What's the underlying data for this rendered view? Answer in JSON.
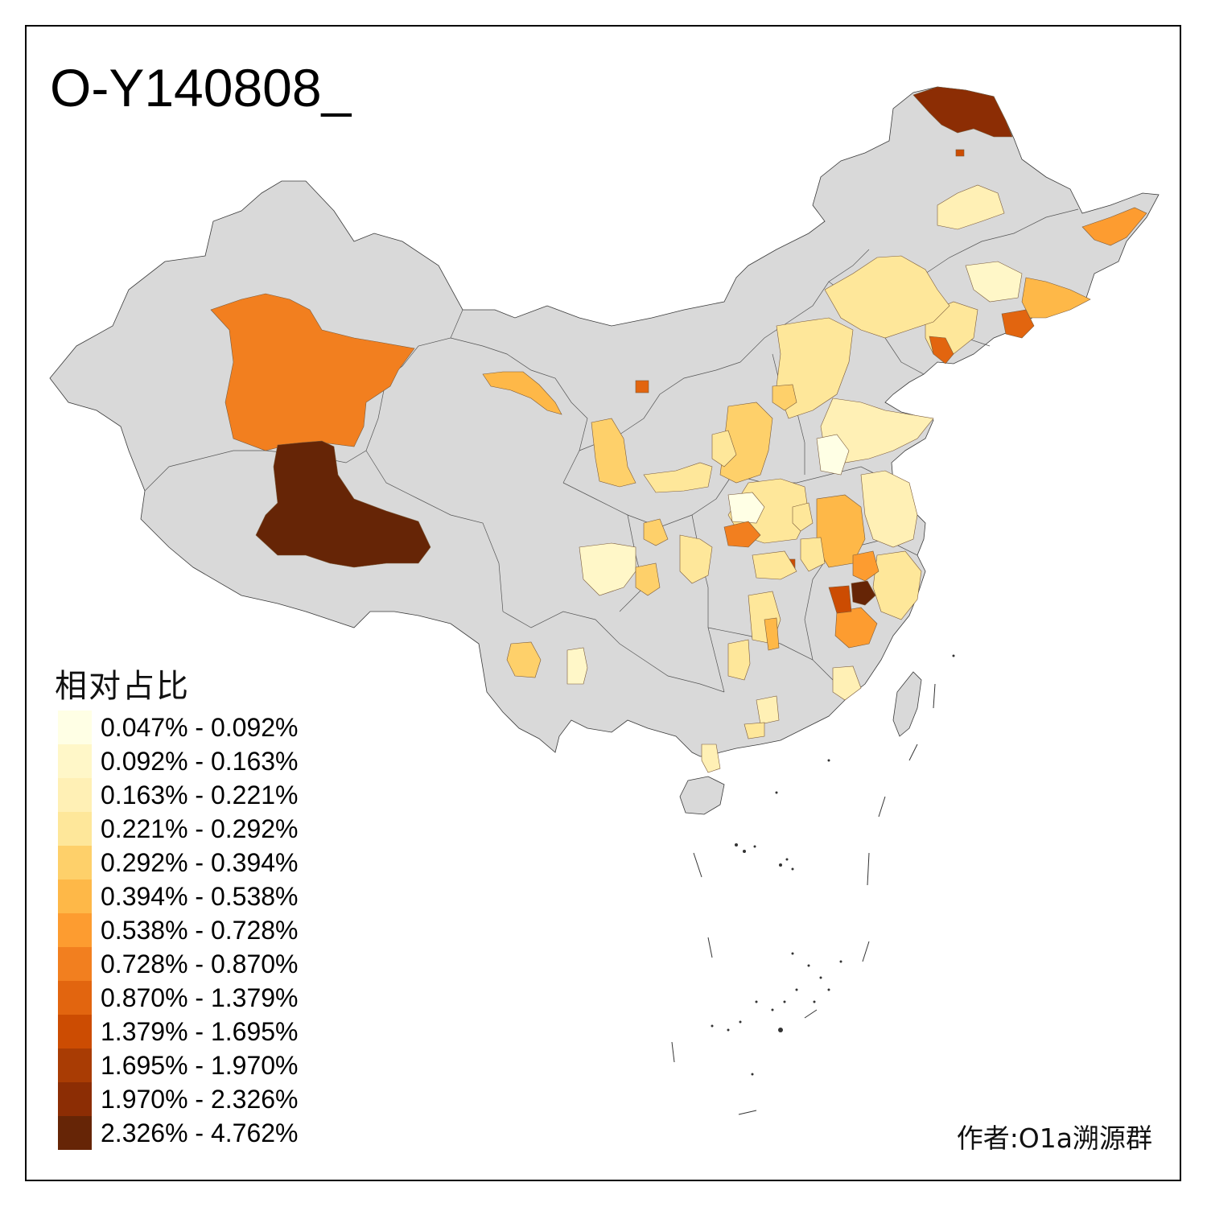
{
  "map": {
    "title": "O-Y140808_",
    "base_color": "#d9d9d9",
    "border_color": "#3a3a3a"
  },
  "legend": {
    "title": "相对占比",
    "classes": [
      {
        "label": "0.047% - 0.092%",
        "color": "#ffffe5"
      },
      {
        "label": "0.092% - 0.163%",
        "color": "#fff7c8"
      },
      {
        "label": "0.163% - 0.221%",
        "color": "#fff0b5"
      },
      {
        "label": "0.221% - 0.292%",
        "color": "#fee79a"
      },
      {
        "label": "0.292% - 0.394%",
        "color": "#fed06a"
      },
      {
        "label": "0.394% - 0.538%",
        "color": "#feb848"
      },
      {
        "label": "0.538% - 0.728%",
        "color": "#fd9c30"
      },
      {
        "label": "0.728% - 0.870%",
        "color": "#f27f1f"
      },
      {
        "label": "0.870% - 1.379%",
        "color": "#e2650f"
      },
      {
        "label": "1.379% - 1.695%",
        "color": "#cc4c02"
      },
      {
        "label": "1.695% - 1.970%",
        "color": "#a93c04"
      },
      {
        "label": "1.970% - 2.326%",
        "color": "#8c2d04"
      },
      {
        "label": "2.326% - 4.762%",
        "color": "#662506"
      }
    ]
  },
  "credit": "作者:O1a溯源群"
}
